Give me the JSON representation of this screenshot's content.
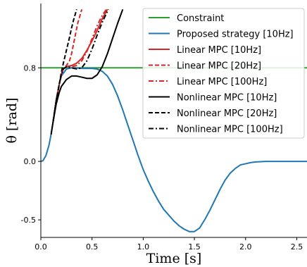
{
  "chart_data": {
    "type": "line",
    "xlabel": "Time [s]",
    "ylabel": "θ [rad]",
    "xlim": [
      0,
      2.6
    ],
    "ylim": [
      -0.65,
      1.35
    ],
    "xticks": [
      "0.0",
      "0.5",
      "1.0",
      "1.5",
      "2.0",
      "2.5"
    ],
    "xtick_values": [
      0,
      0.5,
      1.0,
      1.5,
      2.0,
      2.5
    ],
    "yticks": [
      "-0.5",
      "0.0",
      "0.8"
    ],
    "ytick_values": [
      -0.5,
      0.0,
      0.8
    ],
    "grid": false,
    "legend_position": "top-right",
    "series": [
      {
        "name": "Constraint",
        "color": "#2ca02c",
        "dash": "solid",
        "x": [
          0,
          2.6
        ],
        "y": [
          0.8,
          0.8
        ]
      },
      {
        "name": "Proposed strategy [10Hz]",
        "color": "#1f77b4",
        "dash": "solid",
        "x": [
          0,
          0.02,
          0.05,
          0.08,
          0.1,
          0.12,
          0.15,
          0.18,
          0.2,
          0.25,
          0.3,
          0.4,
          0.5,
          0.55,
          0.6,
          0.65,
          0.7,
          0.75,
          0.8,
          0.85,
          0.9,
          0.95,
          1.0,
          1.05,
          1.1,
          1.15,
          1.2,
          1.25,
          1.3,
          1.35,
          1.4,
          1.45,
          1.5,
          1.55,
          1.6,
          1.65,
          1.7,
          1.75,
          1.8,
          1.85,
          1.9,
          1.95,
          2.0,
          2.05,
          2.1,
          2.2,
          2.3,
          2.4,
          2.5,
          2.6
        ],
        "y": [
          0,
          0.005,
          0.05,
          0.14,
          0.23,
          0.34,
          0.52,
          0.66,
          0.73,
          0.79,
          0.8,
          0.795,
          0.795,
          0.79,
          0.77,
          0.73,
          0.66,
          0.56,
          0.44,
          0.31,
          0.18,
          0.05,
          -0.07,
          -0.17,
          -0.26,
          -0.34,
          -0.41,
          -0.46,
          -0.51,
          -0.55,
          -0.58,
          -0.6,
          -0.6,
          -0.57,
          -0.5,
          -0.42,
          -0.33,
          -0.24,
          -0.16,
          -0.1,
          -0.06,
          -0.03,
          -0.02,
          -0.01,
          -0.005,
          0,
          0,
          0,
          0,
          0
        ]
      },
      {
        "name": "Linear MPC [10Hz]",
        "color": "#d62728",
        "dash": "solid",
        "x": [
          0.12,
          0.15,
          0.18,
          0.2,
          0.22,
          0.25,
          0.3,
          0.35,
          0.4,
          0.45,
          0.5,
          0.55,
          0.6,
          0.65
        ],
        "y": [
          0.34,
          0.52,
          0.66,
          0.74,
          0.79,
          0.81,
          0.82,
          0.84,
          0.88,
          0.95,
          1.03,
          1.12,
          1.22,
          1.3
        ]
      },
      {
        "name": "Linear MPC [20Hz]",
        "color": "#d62728",
        "dash": "dashed",
        "x": [
          0.12,
          0.15,
          0.18,
          0.2,
          0.22,
          0.25,
          0.28,
          0.3,
          0.33,
          0.36,
          0.4
        ],
        "y": [
          0.34,
          0.52,
          0.66,
          0.74,
          0.79,
          0.82,
          0.86,
          0.92,
          1.05,
          1.18,
          1.3
        ]
      },
      {
        "name": "Linear MPC [100Hz]",
        "color": "#d62728",
        "dash": "dashdot",
        "x": [
          0.12,
          0.15,
          0.18,
          0.2,
          0.22,
          0.25,
          0.3,
          0.35,
          0.4,
          0.45,
          0.5,
          0.55,
          0.6,
          0.64
        ],
        "y": [
          0.34,
          0.52,
          0.66,
          0.74,
          0.79,
          0.81,
          0.81,
          0.82,
          0.86,
          0.94,
          1.05,
          1.16,
          1.25,
          1.3
        ]
      },
      {
        "name": "Nonlinear MPC [10Hz]",
        "color": "#000000",
        "dash": "solid",
        "x": [
          0.1,
          0.12,
          0.15,
          0.18,
          0.2,
          0.25,
          0.3,
          0.35,
          0.4,
          0.45,
          0.5,
          0.55,
          0.6,
          0.65,
          0.7,
          0.75,
          0.8
        ],
        "y": [
          0.23,
          0.34,
          0.49,
          0.59,
          0.64,
          0.7,
          0.73,
          0.73,
          0.72,
          0.71,
          0.71,
          0.74,
          0.81,
          0.92,
          1.05,
          1.18,
          1.3
        ]
      },
      {
        "name": "Nonlinear MPC [20Hz]",
        "color": "#000000",
        "dash": "dashed",
        "x": [
          0.12,
          0.15,
          0.18,
          0.2,
          0.22,
          0.25,
          0.28,
          0.3,
          0.32,
          0.35
        ],
        "y": [
          0.34,
          0.52,
          0.66,
          0.76,
          0.84,
          0.95,
          1.06,
          1.14,
          1.21,
          1.3
        ]
      },
      {
        "name": "Nonlinear MPC [100Hz]",
        "color": "#000000",
        "dash": "dashdot",
        "x": [
          0.12,
          0.15,
          0.18,
          0.2,
          0.22,
          0.25,
          0.3,
          0.35,
          0.4,
          0.45,
          0.5,
          0.55,
          0.6,
          0.66
        ],
        "y": [
          0.34,
          0.52,
          0.66,
          0.74,
          0.79,
          0.81,
          0.8,
          0.79,
          0.8,
          0.86,
          0.96,
          1.08,
          1.19,
          1.3
        ]
      }
    ]
  }
}
